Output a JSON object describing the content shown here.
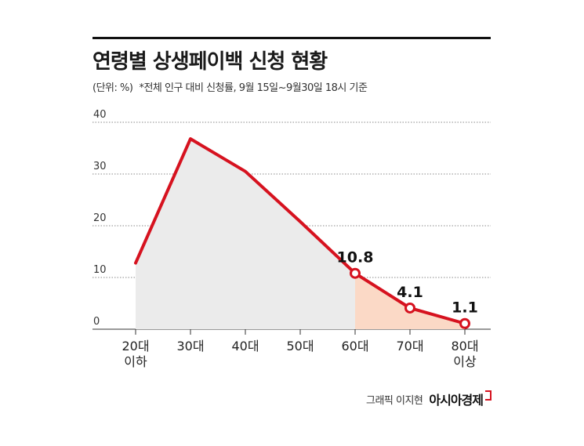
{
  "header": {
    "title": "연령별 상생페이백 신청 현황",
    "unit": "(단위: %)",
    "note": "*전체 인구 대비 신청률, 9월 15일~9월30일 18시 기준"
  },
  "credit": {
    "artist": "그래픽 이지현",
    "brand": "아시아경제"
  },
  "colors": {
    "line": "#d6121f",
    "area_gray": "#ebebeb",
    "area_highlight": "#fbd9c6",
    "grid": "#8a8a8a"
  },
  "chart_data": {
    "type": "area",
    "categories": [
      [
        "20대",
        "이하"
      ],
      [
        "30대"
      ],
      [
        "40대"
      ],
      [
        "50대"
      ],
      [
        "60대"
      ],
      [
        "70대"
      ],
      [
        "80대",
        "이상"
      ]
    ],
    "values": [
      12.8,
      36.8,
      30.5,
      20.8,
      10.8,
      4.1,
      1.1
    ],
    "ylim": [
      0,
      40
    ],
    "yticks": [
      0,
      10,
      20,
      30,
      40
    ],
    "highlight_from_index": 4,
    "data_labels": [
      {
        "index": 4,
        "text": "10.8"
      },
      {
        "index": 5,
        "text": "4.1"
      },
      {
        "index": 6,
        "text": "1.1"
      }
    ],
    "grid": true,
    "legend": "none"
  }
}
